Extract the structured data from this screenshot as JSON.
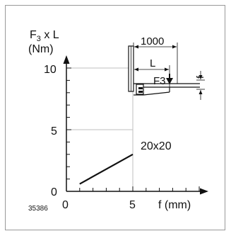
{
  "y_label_line1": "F",
  "y_label_sub": "3",
  "y_label_rest": " x L",
  "y_label_line2": "(Nm)",
  "x_label": "f (mm)",
  "y_ticks_labeled": [
    "0",
    "5",
    "10"
  ],
  "x_ticks_labeled": [
    "0",
    "5"
  ],
  "figure_id": "35386",
  "curve_label": "20x20",
  "inset": {
    "dim_total": "1000",
    "dim_L": "L",
    "force": "F3",
    "deflection": "f"
  },
  "chart_data": {
    "type": "line",
    "xlim": [
      0,
      10
    ],
    "ylim": [
      0,
      10
    ],
    "grid": true,
    "series": [
      {
        "name": "20x20",
        "x": [
          1,
          5
        ],
        "y": [
          0.6,
          3.0
        ]
      }
    ]
  }
}
